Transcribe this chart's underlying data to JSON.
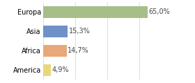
{
  "categories": [
    "America",
    "Africa",
    "Asia",
    "Europa"
  ],
  "values": [
    4.9,
    14.7,
    15.3,
    65.0
  ],
  "bar_colors": [
    "#e8d87a",
    "#e8a878",
    "#7090c8",
    "#a8be88"
  ],
  "labels": [
    "4,9%",
    "14,7%",
    "15,3%",
    "65,0%"
  ],
  "xlim": [
    0,
    80
  ],
  "background_color": "#ffffff",
  "bar_height": 0.62,
  "label_fontsize": 7.0,
  "tick_fontsize": 7.0,
  "grid_color": "#d8d8d8",
  "grid_positions": [
    0,
    20,
    40,
    60,
    80
  ]
}
